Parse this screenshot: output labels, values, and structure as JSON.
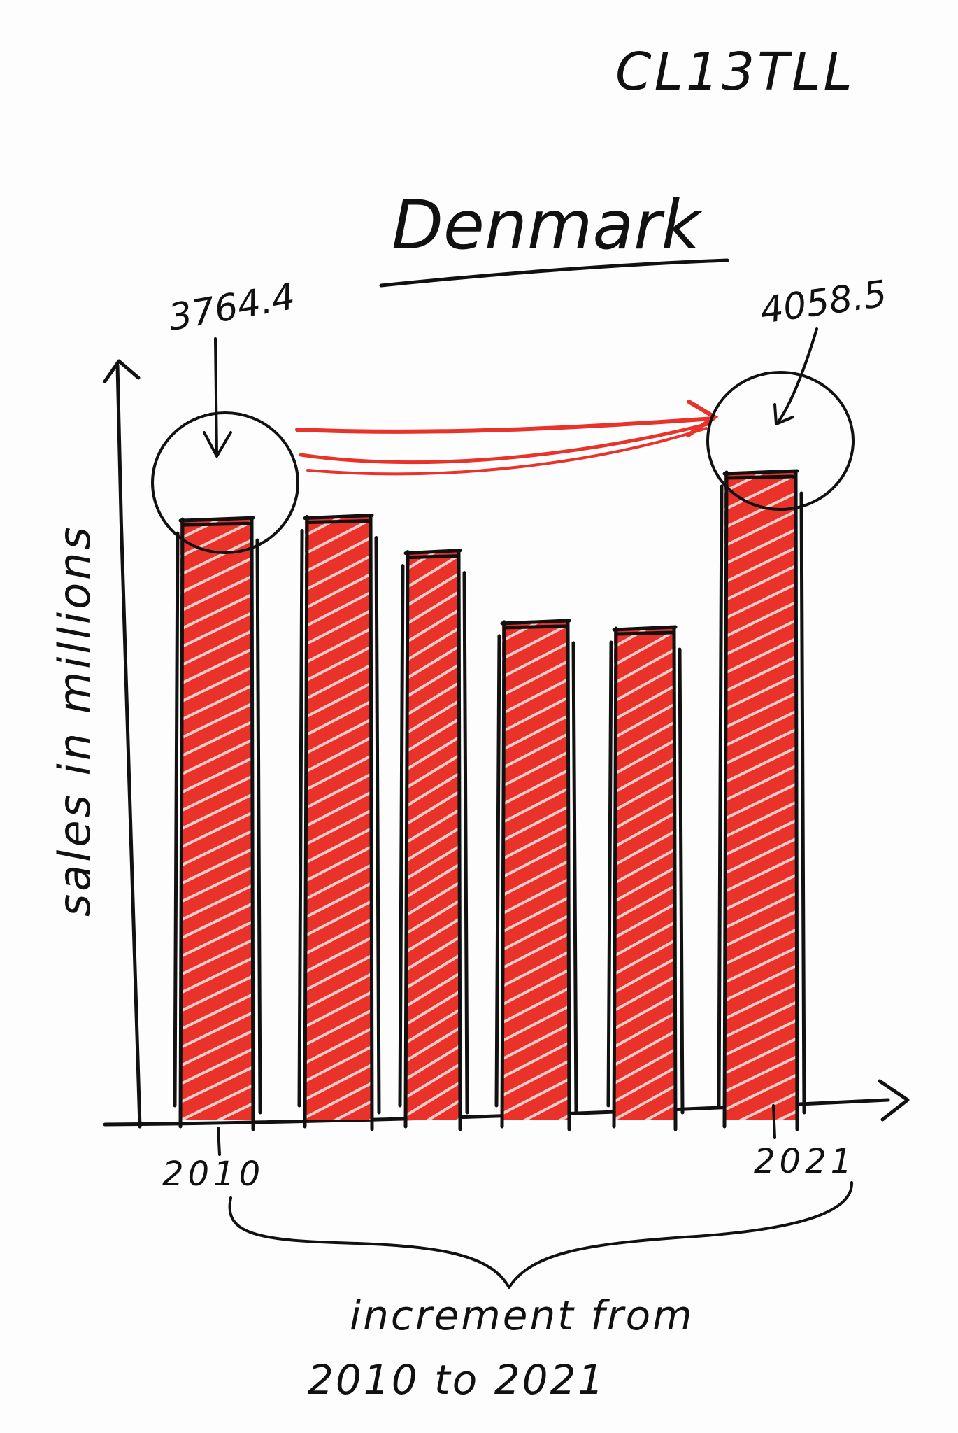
{
  "page": {
    "code_label": "CL13TLL"
  },
  "chart_data": {
    "type": "bar",
    "title": "Denmark",
    "ylabel": "sales in millions",
    "categories": [
      "2010",
      "",
      "",
      "",
      "",
      "2021"
    ],
    "values": [
      3764.4,
      3780,
      3560,
      3120,
      3080,
      4058.5
    ],
    "data_labels": [
      "3764.4",
      "",
      "",
      "",
      "",
      "4058.5"
    ],
    "ylim": [
      0,
      4300
    ],
    "grid": false,
    "legend": "none",
    "bar_color": "#e8322a",
    "outline_color": "#111111",
    "annotation": {
      "line1": "increment from",
      "line2": "2010 to 2021"
    }
  }
}
